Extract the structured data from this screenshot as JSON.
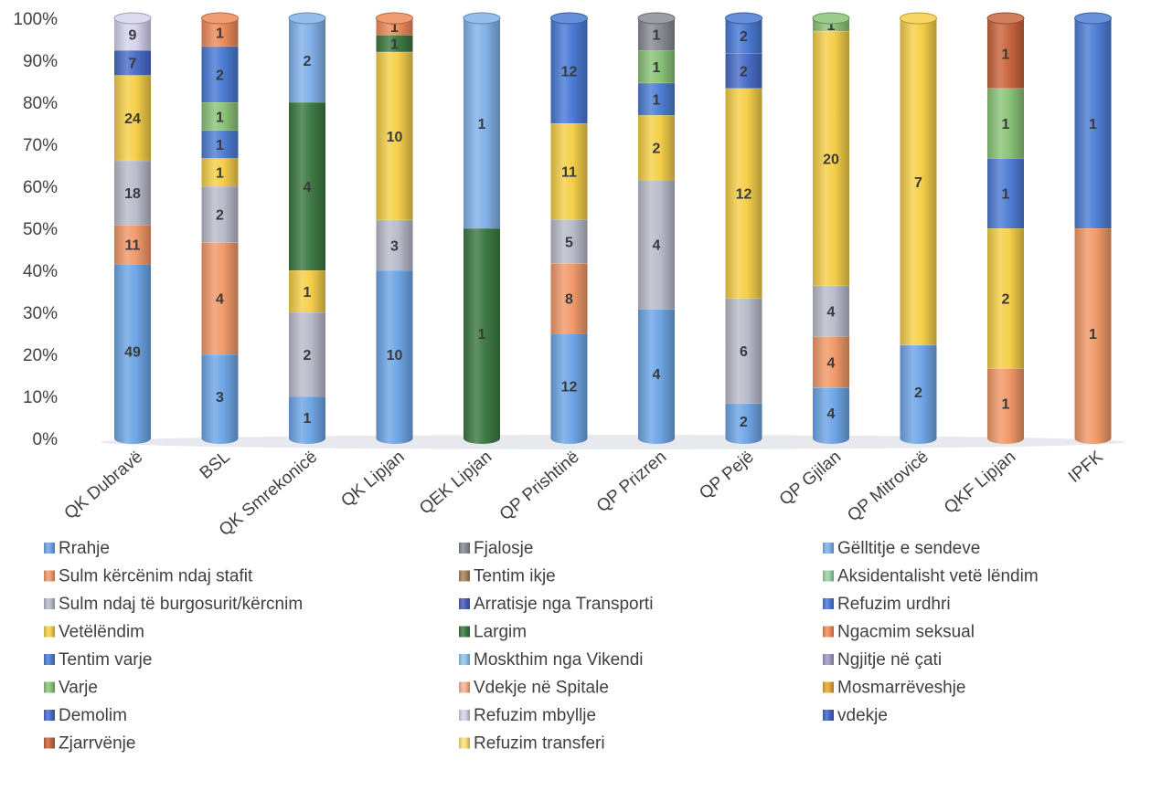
{
  "chart_data": {
    "type": "bar",
    "stacked": "percent",
    "grid": false,
    "legend_position": "bottom",
    "categories": [
      "QK Dubravë",
      "BSL",
      "QK Smrekonicë",
      "QK Lipjan",
      "QEK Lipjan",
      "QP Prishtinë",
      "QP Prizren",
      "QP Pejë",
      "QP Gjilan",
      "QP Mitrovicë",
      "QKF Lipjan",
      "IPFK"
    ],
    "y_ticks": [
      "0%",
      "10%",
      "20%",
      "30%",
      "40%",
      "50%",
      "60%",
      "70%",
      "80%",
      "90%",
      "100%"
    ],
    "ylim": [
      0,
      100
    ],
    "series": [
      {
        "name": "Rrahje",
        "color": "#6fa6e6",
        "values": [
          49,
          3,
          1,
          10,
          0,
          12,
          4,
          2,
          4,
          2,
          0,
          0
        ]
      },
      {
        "name": "Sulm  kërcënim ndaj stafit",
        "color": "#f19a6a",
        "values": [
          11,
          4,
          0,
          0,
          0,
          8,
          0,
          0,
          4,
          0,
          1,
          1
        ]
      },
      {
        "name": "Sulm ndaj të burgosurit/kërcnim",
        "color": "#b9bccb",
        "values": [
          18,
          2,
          2,
          3,
          0,
          5,
          4,
          6,
          4,
          0,
          0,
          0
        ]
      },
      {
        "name": "Vetëlëndim",
        "color": "#f5cf4a",
        "values": [
          24,
          1,
          1,
          10,
          0,
          11,
          2,
          12,
          20,
          7,
          2,
          0
        ]
      },
      {
        "name": "Tentim varje",
        "color": "#4f7fd6",
        "values": [
          0,
          1,
          0,
          0,
          0,
          0,
          1,
          0,
          0,
          0,
          1,
          1
        ]
      },
      {
        "name": "Varje",
        "color": "#8cc47a",
        "values": [
          0,
          1,
          0,
          0,
          0,
          0,
          1,
          0,
          1,
          0,
          1,
          0
        ]
      },
      {
        "name": "Demolim",
        "color": "#4a6ec8",
        "values": [
          7,
          0,
          0,
          0,
          0,
          0,
          0,
          2,
          0,
          0,
          0,
          0
        ]
      },
      {
        "name": "Zjarrvënje",
        "color": "#c9663f",
        "values": [
          0,
          0,
          0,
          0,
          0,
          0,
          0,
          0,
          0,
          0,
          1,
          0
        ]
      },
      {
        "name": "Fjalosje",
        "color": "#8a8c95",
        "values": [
          0,
          0,
          0,
          0,
          0,
          0,
          1,
          0,
          0,
          0,
          0,
          0
        ]
      },
      {
        "name": "Tentim ikje",
        "color": "#a5875a",
        "values": [
          0,
          0,
          0,
          0,
          0,
          0,
          0,
          0,
          0,
          0,
          0,
          0
        ]
      },
      {
        "name": "Arratisje nga Transporti",
        "color": "#4b5fb5",
        "values": [
          0,
          0,
          0,
          0,
          0,
          0,
          0,
          0,
          0,
          0,
          0,
          0
        ]
      },
      {
        "name": "Largim",
        "color": "#3e7a45",
        "values": [
          0,
          0,
          4,
          1,
          1,
          0,
          0,
          0,
          0,
          0,
          0,
          0
        ]
      },
      {
        "name": "Moskthim  nga Vikendi",
        "color": "#8ec8ee",
        "values": [
          0,
          0,
          0,
          0,
          0,
          0,
          0,
          0,
          0,
          0,
          0,
          0
        ]
      },
      {
        "name": "Vdekje në Spitale",
        "color": "#f7b393",
        "values": [
          0,
          0,
          0,
          0,
          0,
          0,
          0,
          0,
          0,
          0,
          0,
          0
        ]
      },
      {
        "name": "Refuzim mbyllje",
        "color": "#d6d3ec",
        "values": [
          9,
          0,
          0,
          0,
          0,
          0,
          0,
          0,
          0,
          0,
          0,
          0
        ]
      },
      {
        "name": "Refuzim transferi",
        "color": "#f9e27a",
        "values": [
          0,
          0,
          0,
          0,
          0,
          0,
          0,
          0,
          0,
          0,
          0,
          0
        ]
      },
      {
        "name": "Gëlltitje e sendeve",
        "color": "#82b2ea",
        "values": [
          0,
          0,
          2,
          0,
          1,
          0,
          0,
          0,
          0,
          0,
          0,
          0
        ]
      },
      {
        "name": "Aksidentalisht vetë lëndim",
        "color": "#98d3a4",
        "values": [
          0,
          0,
          0,
          0,
          0,
          0,
          0,
          0,
          0,
          0,
          0,
          0
        ]
      },
      {
        "name": "Refuzim urdhri",
        "color": "#4b7bd5",
        "values": [
          0,
          2,
          0,
          0,
          0,
          12,
          0,
          2,
          0,
          0,
          0,
          0
        ]
      },
      {
        "name": "Ngacmim seksual",
        "color": "#ee8c5b",
        "values": [
          0,
          1,
          0,
          1,
          0,
          0,
          0,
          0,
          0,
          0,
          0,
          0
        ]
      },
      {
        "name": "Ngjitje në çati",
        "color": "#a49ac3",
        "values": [
          0,
          0,
          0,
          0,
          0,
          0,
          0,
          0,
          0,
          0,
          0,
          0
        ]
      },
      {
        "name": "Mosmarrëveshje",
        "color": "#e5a83b",
        "values": [
          0,
          0,
          0,
          0,
          0,
          0,
          0,
          0,
          0,
          0,
          0,
          0
        ]
      },
      {
        "name": "vdekje",
        "color": "#4565c4",
        "values": [
          0,
          0,
          0,
          0,
          0,
          0,
          0,
          0,
          0,
          0,
          0,
          0
        ]
      }
    ]
  }
}
